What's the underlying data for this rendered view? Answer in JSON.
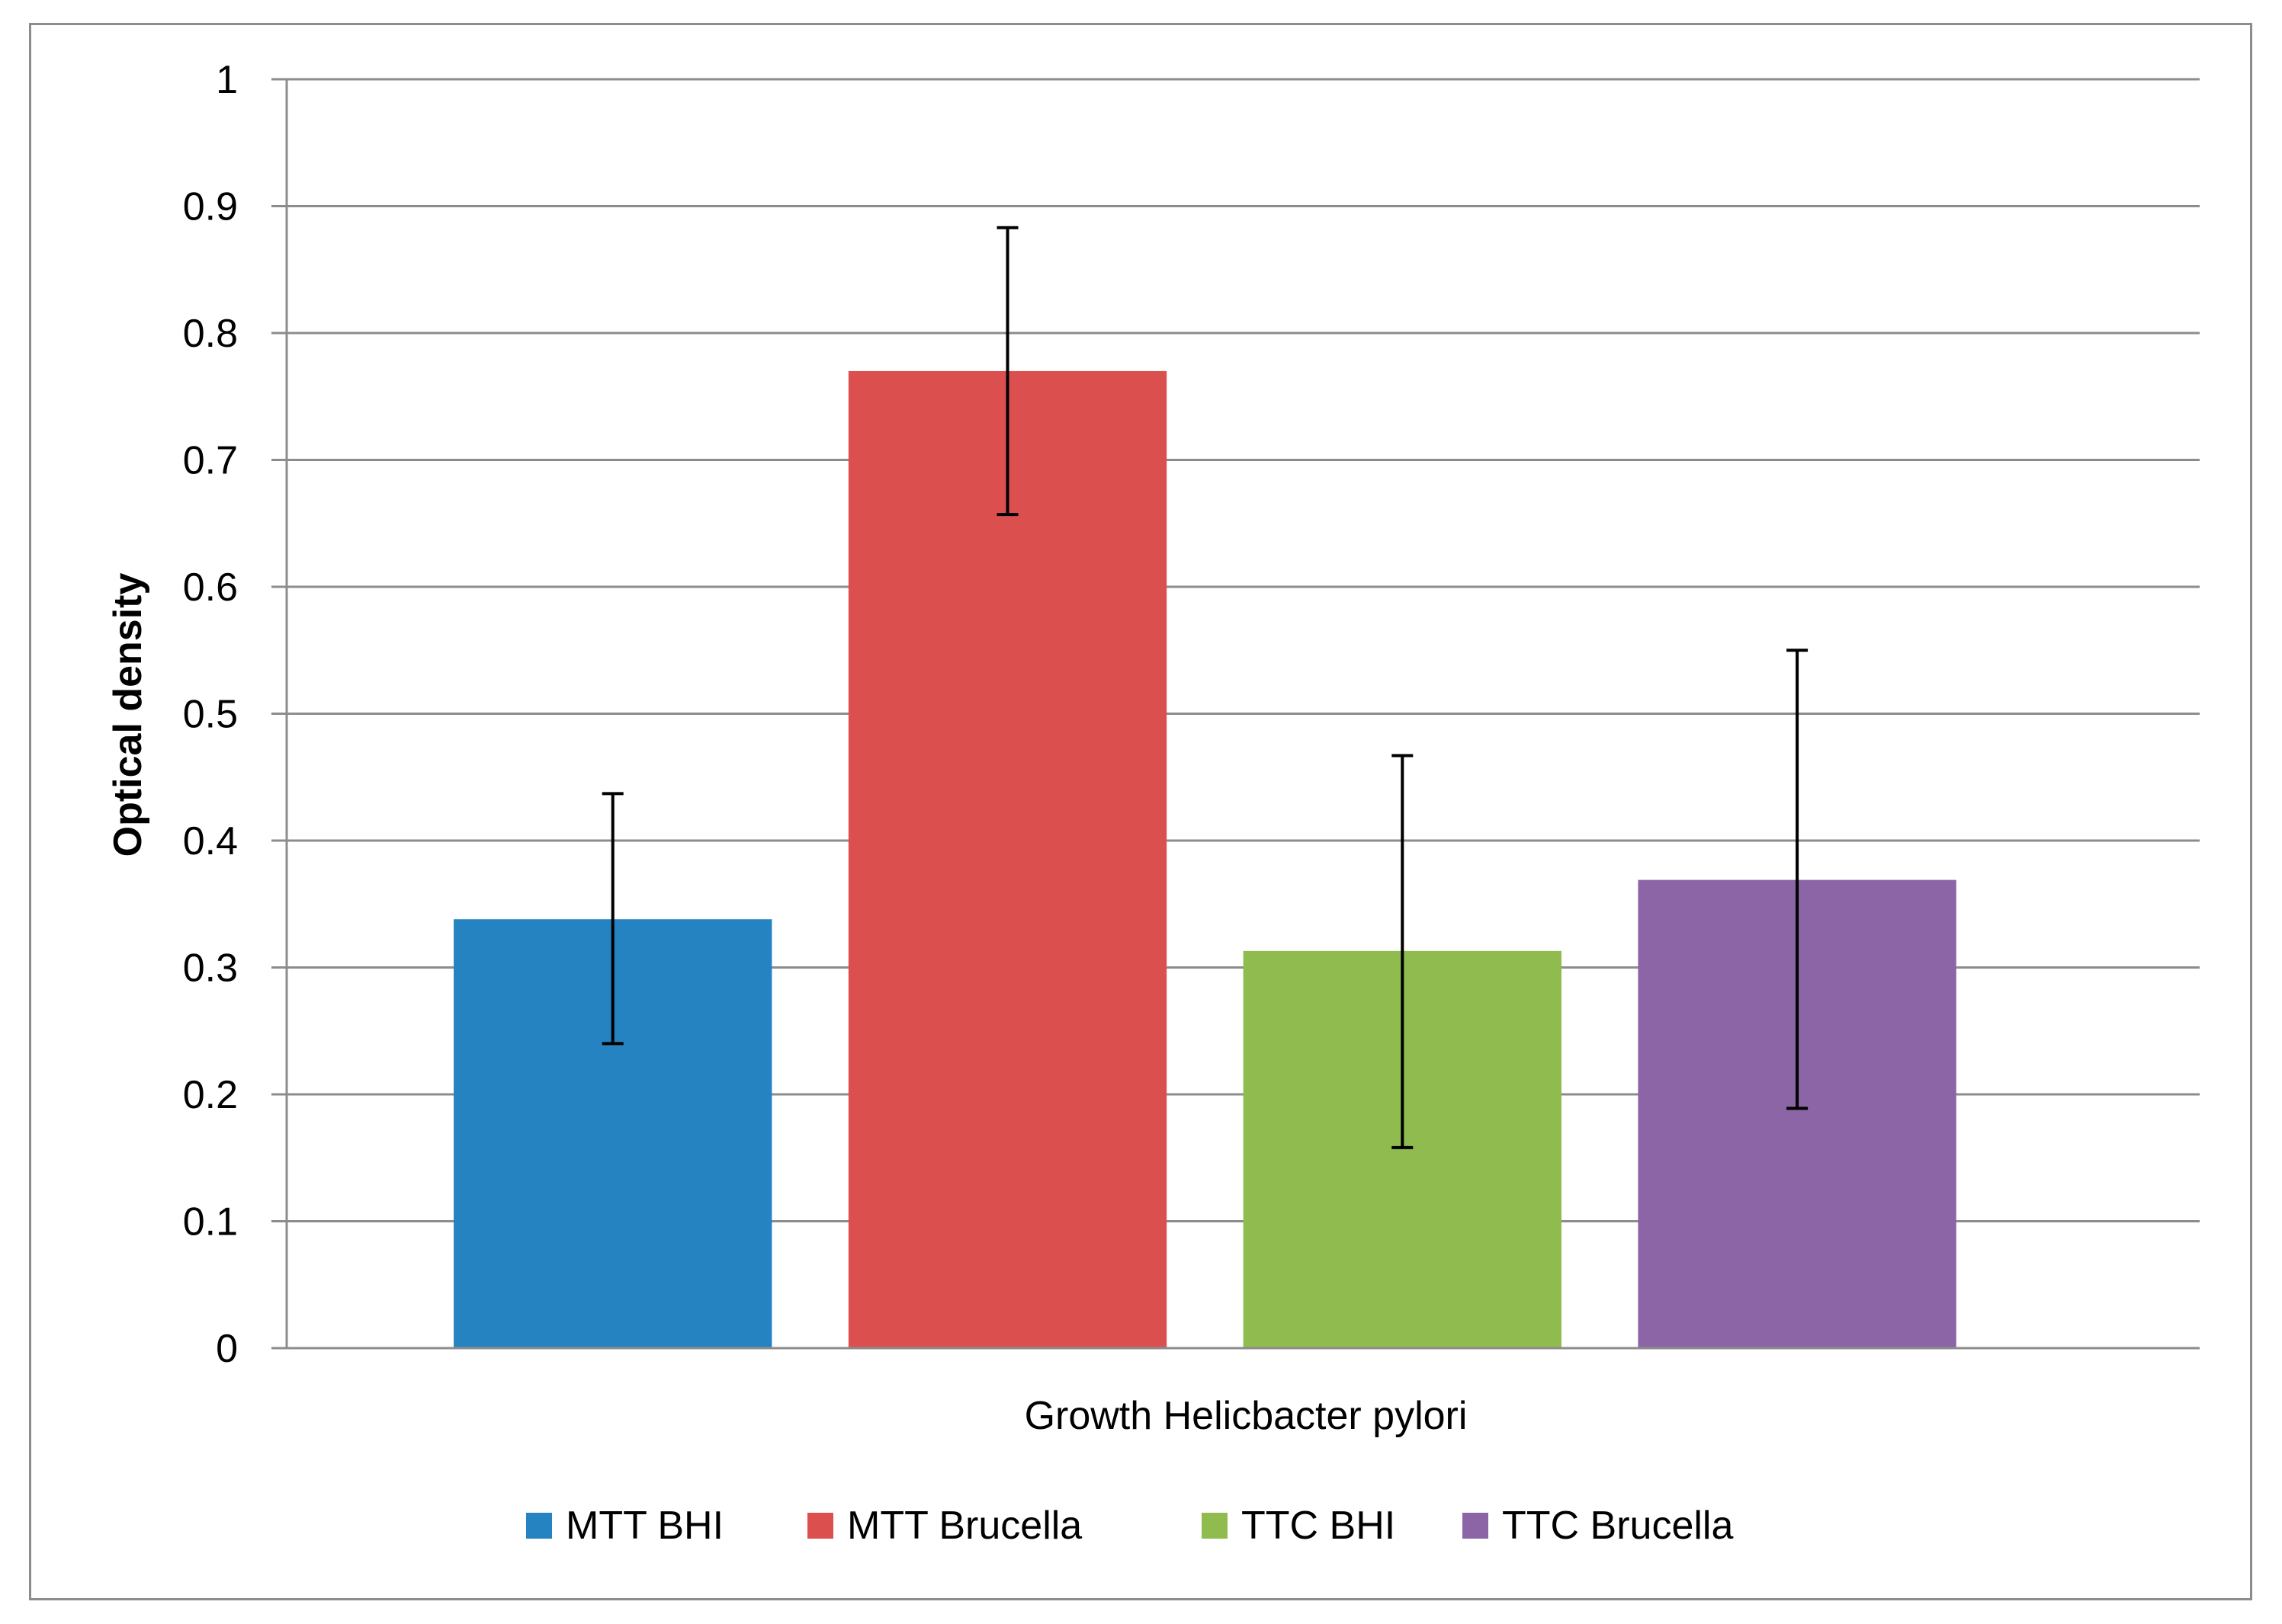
{
  "chart_data": {
    "type": "bar",
    "title": "",
    "xlabel": "Growth  Helicbacter pylori",
    "ylabel": "Optical density",
    "ylim": [
      0,
      1
    ],
    "yticks": [
      "0",
      "0.1",
      "0.2",
      "0.3",
      "0.4",
      "0.5",
      "0.6",
      "0.7",
      "0.8",
      "0.9",
      "1"
    ],
    "grid": true,
    "legend_position": "bottom",
    "series": [
      {
        "name": "MTT BHI",
        "value": 0.338,
        "error_low": 0.24,
        "error_high": 0.437,
        "color": "#2683c1"
      },
      {
        "name": "MTT Brucella",
        "value": 0.77,
        "error_low": 0.657,
        "error_high": 0.883,
        "color": "#db504f"
      },
      {
        "name": "TTC BHI",
        "value": 0.313,
        "error_low": 0.158,
        "error_high": 0.467,
        "color": "#8fbb4f"
      },
      {
        "name": "TTC Brucella",
        "value": 0.369,
        "error_low": 0.189,
        "error_high": 0.55,
        "color": "#8b65a6"
      }
    ]
  }
}
